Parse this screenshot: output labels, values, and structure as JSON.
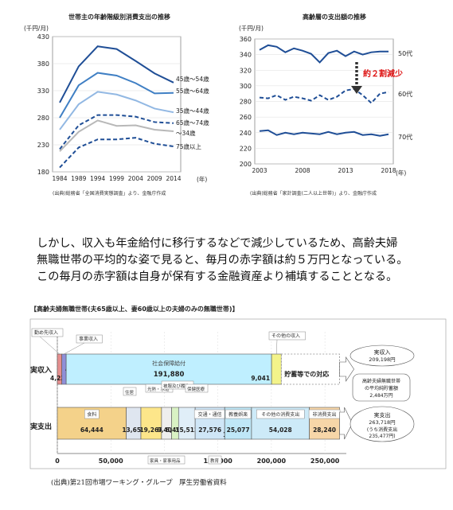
{
  "chart_data": [
    {
      "type": "line",
      "title": "世帯主の年齢階級別消費支出の推移",
      "ylabel": "(千円/月)",
      "xlabel": "(年)",
      "x": [
        1984,
        1989,
        1994,
        1999,
        2004,
        2009,
        2014
      ],
      "xticks": [
        "1984",
        "1989",
        "1994",
        "1999",
        "2004",
        "2009",
        "2014"
      ],
      "yticks": [
        "180",
        "230",
        "280",
        "330",
        "380",
        "430"
      ],
      "ylim": [
        180,
        430
      ],
      "series": [
        {
          "name": "45歳～54歳",
          "values": [
            308,
            375,
            412,
            407,
            385,
            362,
            345
          ],
          "style": "solid",
          "color": "#1f4e96"
        },
        {
          "name": "55歳～64歳",
          "values": [
            280,
            340,
            363,
            358,
            344,
            325,
            326
          ],
          "style": "solid",
          "color": "#3f7fc4"
        },
        {
          "name": "35歳～44歳",
          "values": [
            258,
            305,
            328,
            323,
            312,
            297,
            290
          ],
          "style": "solid",
          "color": "#92b8e3"
        },
        {
          "name": "65歳～74歳",
          "values": [
            222,
            266,
            285,
            285,
            282,
            272,
            270
          ],
          "style": "dashed",
          "color": "#1f4e96"
        },
        {
          "name": "～34歳",
          "values": [
            218,
            254,
            275,
            265,
            266,
            258,
            255
          ],
          "style": "solid",
          "color": "#b8b8b8"
        },
        {
          "name": "75歳以上",
          "values": [
            188,
            225,
            240,
            240,
            243,
            232,
            227
          ],
          "style": "dashed",
          "color": "#1f4e96"
        }
      ],
      "source": "(出典)総務省「全国消費実態調査」より、金融庁作成"
    },
    {
      "type": "line",
      "title": "高齢層の支出額の推移",
      "ylabel": "(千円/月)",
      "xlabel": "(年)",
      "x": [
        2003,
        2004,
        2005,
        2006,
        2007,
        2008,
        2009,
        2010,
        2011,
        2012,
        2013,
        2014,
        2015,
        2016,
        2017,
        2018
      ],
      "xticks": [
        "2003",
        "2008",
        "2013",
        "2018"
      ],
      "yticks": [
        "200",
        "220",
        "240",
        "260",
        "280",
        "300",
        "320",
        "340",
        "360"
      ],
      "ylim": [
        200,
        360
      ],
      "series": [
        {
          "name": "50代",
          "values": [
            346,
            352,
            350,
            343,
            348,
            345,
            341,
            330,
            342,
            345,
            338,
            344,
            340,
            343,
            344,
            344
          ],
          "style": "solid",
          "color": "#1f4e96"
        },
        {
          "name": "60代",
          "values": [
            285,
            284,
            288,
            282,
            286,
            284,
            281,
            288,
            282,
            286,
            294,
            296,
            288,
            278,
            290,
            292
          ],
          "style": "dashed",
          "color": "#1f4e96"
        },
        {
          "name": "70代",
          "values": [
            242,
            243,
            237,
            240,
            238,
            240,
            239,
            238,
            241,
            238,
            240,
            241,
            237,
            238,
            236,
            238
          ],
          "style": "solid",
          "color": "#1f4e96"
        }
      ],
      "annotation": "約２割減少",
      "source": "(出典)総務省「家計調査(二人以上世帯)」より、金融庁作成"
    },
    {
      "type": "bar",
      "orientation": "horizontal-stacked",
      "title": "【高齢夫婦無職世帯(夫65歳以上、妻60歳以上の夫婦のみの無職世帯)】",
      "categories": [
        "実収入",
        "実支出"
      ],
      "xticks": [
        "0",
        "50,000",
        "100,000",
        "150,000",
        "200,000",
        "250,000"
      ],
      "xlim": [
        0,
        270000
      ],
      "income": {
        "segments": [
          {
            "name": "勤め先収入",
            "value": 4232,
            "label": "4,232",
            "color": "#e58f8f"
          },
          {
            "name": "事業収入",
            "value": 4045,
            "label": "4,045",
            "color": "#8f8fd8"
          },
          {
            "name": "社会保障給付",
            "value": 191880,
            "label": "191,880",
            "color": "#bfefff"
          },
          {
            "name": "その他の収入",
            "value": 9041,
            "label": "9,041",
            "color": "#f3f38a"
          }
        ],
        "gap_label": "貯蓄等での対応",
        "callout": {
          "title": "実収入",
          "value": "209,198円"
        }
      },
      "expense": {
        "segments": [
          {
            "name": "食料",
            "value": 64444,
            "label": "64,444",
            "color": "#f4d28a"
          },
          {
            "name": "住居",
            "value": 13656,
            "label": "13,656",
            "color": "#dfe6f0"
          },
          {
            "name": "光熱・水道",
            "value": 19267,
            "label": "19,267",
            "color": "#fde68a"
          },
          {
            "name": "家具・家事用品",
            "value": 9405,
            "label": "9,405",
            "color": "#eeeeee"
          },
          {
            "name": "被服及び履物",
            "value": 6497,
            "label": "6,497",
            "color": "#d9f2c4"
          },
          {
            "name": "保健医療",
            "value": 15512,
            "label": "15,512",
            "color": "#e0eef8"
          },
          {
            "name": "交通・通信",
            "value": 27576,
            "label": "27,576",
            "color": "#cfe6f7"
          },
          {
            "name": "教育",
            "value": 15,
            "label": "15",
            "color": "#dddddd"
          },
          {
            "name": "教養娯楽",
            "value": 25077,
            "label": "25,077",
            "color": "#bfe7f7"
          },
          {
            "name": "その他の消費支出",
            "value": 54028,
            "label": "54,028",
            "color": "#cdeaf8"
          },
          {
            "name": "非消費支出",
            "value": 28240,
            "label": "28,240",
            "color": "#f7d6a8"
          }
        ],
        "callout": {
          "title": "実支出",
          "value": "263,718円",
          "note": "(うち消費支出",
          "note2": "235,477円)"
        }
      },
      "deficit_note": {
        "line1": "高齢夫婦無職世帯",
        "line2": "の平均純貯蓄額",
        "line3": "2,484万円"
      },
      "source": "(出典)第21回市場ワーキング・グループ　厚生労働省資料"
    }
  ],
  "text": {
    "para1": "しかし、収入も年金給付に移行するなどで減少しているため、高齢夫婦",
    "para2": "無職世帯の平均的な姿で見ると、毎月の赤字額は約５万円となっている。",
    "para3": "この毎月の赤字額は自身が保有する金融資産より補填することとなる。"
  }
}
